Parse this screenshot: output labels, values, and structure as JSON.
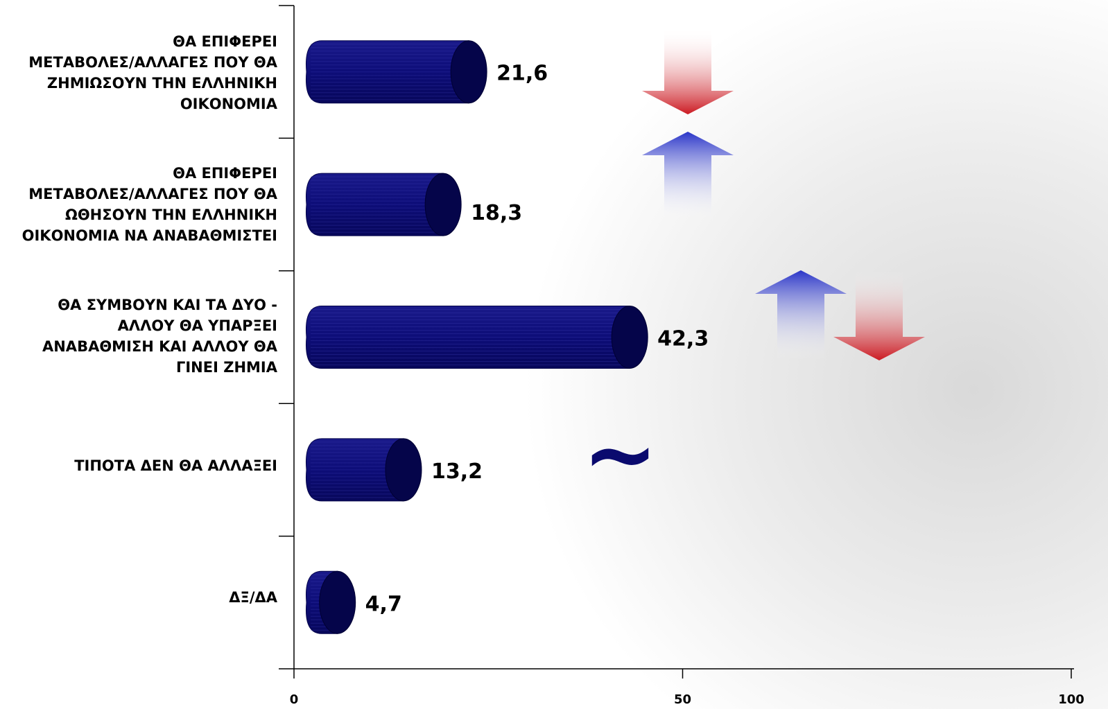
{
  "chart_data": {
    "type": "bar",
    "orientation": "horizontal",
    "title": "",
    "xlabel": "",
    "ylabel": "",
    "xlim": [
      0,
      100
    ],
    "x_ticks": [
      "0",
      "50",
      "100"
    ],
    "grid": false,
    "bar_color": "#0a0a6e",
    "categories": [
      "ΘΑ ΕΠΙΦΕΡΕΙ\nΜΕΤΑΒΟΛΕΣ/ΑΛΛΑΓΕΣ ΠΟΥ ΘΑ\nΖΗΜΙΩΣΟΥΝ ΤΗΝ ΕΛΛΗΝΙΚΗ\nΟΙΚΟΝΟΜΙΑ",
      "ΘΑ ΕΠΙΦΕΡΕΙ\nΜΕΤΑΒΟΛΕΣ/ΑΛΛΑΓΕΣ ΠΟΥ ΘΑ\nΩΘΗΣΟΥΝ ΤΗΝ ΕΛΛΗΝΙΚΗ\nΟΙΚΟΝΟΜΙΑ ΝΑ ΑΝΑΒΑΘΜΙΣΤΕΙ",
      "ΘΑ ΣΥΜΒΟΥΝ ΚΑΙ ΤΑ ΔΥΟ -\nΑΛΛΟΥ ΘΑ ΥΠΑΡΞΕΙ\nΑΝΑΒΑΘΜΙΣΗ ΚΑΙ ΑΛΛΟΥ ΘΑ\nΓΙΝΕΙ ΖΗΜΙΑ",
      "ΤΙΠΟΤΑ ΔΕΝ ΘΑ ΑΛΛΑΞΕΙ",
      "ΔΞ/ΔΑ"
    ],
    "values": [
      21.6,
      18.3,
      42.3,
      13.2,
      4.7
    ],
    "value_labels": [
      "21,6",
      "18,3",
      "42,3",
      "13,2",
      "4,7"
    ],
    "annotation_symbols": {
      "down_arrow_color": "#cc1a22",
      "up_arrow_color": "#2a35c8",
      "tilde": "~",
      "tilde_color": "#0a0a6e"
    }
  }
}
